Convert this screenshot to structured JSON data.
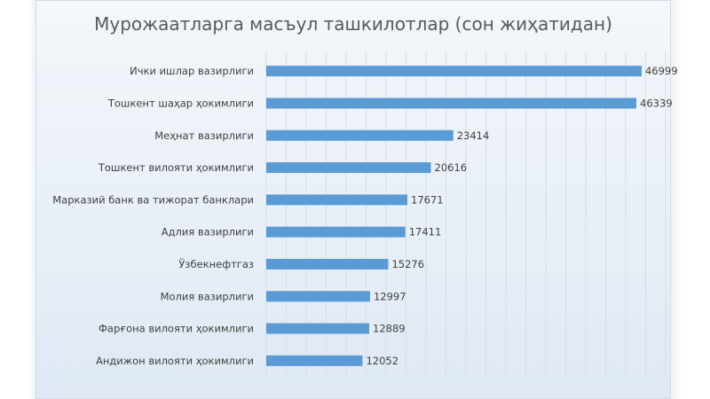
{
  "chart_data": {
    "type": "bar",
    "orientation": "horizontal",
    "title": "Мурожаатларга масъул ташкилотлар (сон жиҳатидан)",
    "categories": [
      "Ички ишлар вазирлиги",
      "Тошкент шаҳар ҳокимлиги",
      "Меҳнат вазирлиги",
      "Тошкент вилояти ҳокимлиги",
      "Марказий банк ва тижорат банклари",
      "Адлия вазирлиги",
      "Ўзбекнефтгаз",
      "Молия вазирлиги",
      "Фарғона вилояти ҳокимлиги",
      "Андижон вилояти ҳокимлиги"
    ],
    "values": [
      46999,
      46339,
      23414,
      20616,
      17671,
      17411,
      15276,
      12997,
      12889,
      12052
    ],
    "xlim": [
      0,
      50000
    ],
    "grid": true,
    "bar_color": "#5b9bd5",
    "data_labels": true
  }
}
